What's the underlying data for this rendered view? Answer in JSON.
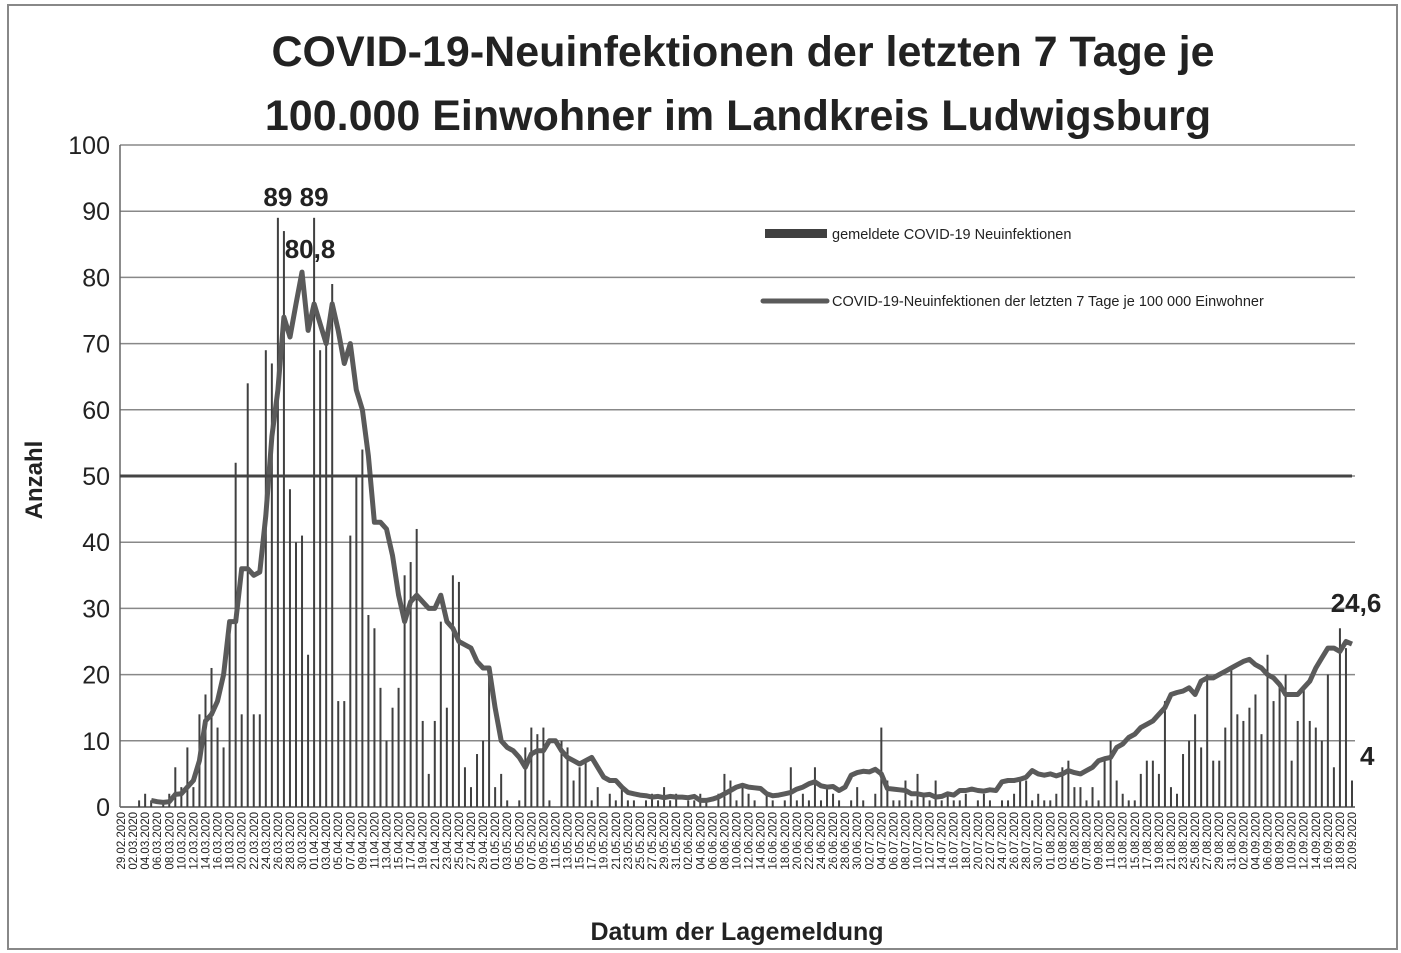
{
  "chart_data": {
    "type": "bar_line",
    "title": "COVID-19-Neuinfektionen der letzten 7 Tage je",
    "title_line2": "100.000 Einwohner im Landkreis Ludwigsburg",
    "y_label": "Anzahl",
    "x_label": "Datum der Lagemeldung",
    "ylim": [
      0,
      100
    ],
    "yticks": [
      0,
      10,
      20,
      30,
      40,
      50,
      60,
      70,
      80,
      90,
      100
    ],
    "grid": true,
    "reference_line": 50,
    "categories": [
      "29.02.2020",
      null,
      "02.03.2020",
      null,
      "04.03.2020",
      null,
      "06.03.2020",
      null,
      "08.03.2020",
      null,
      "10.03.2020",
      null,
      "12.03.2020",
      null,
      "14.03.2020",
      null,
      "16.03.2020",
      null,
      "18.03.2020",
      null,
      "20.03.2020",
      null,
      "22.03.2020",
      null,
      "24.03.2020",
      null,
      "26.03.2020",
      null,
      "28.03.2020",
      null,
      "30.03.2020",
      null,
      "01.04.2020",
      null,
      "03.04.2020",
      null,
      "05.04.2020",
      null,
      "07.04.2020",
      null,
      "09.04.2020",
      null,
      "11.04.2020",
      null,
      "13.04.2020",
      null,
      "15.04.2020",
      null,
      "17.04.2020",
      null,
      "19.04.2020",
      null,
      "21.04.2020",
      null,
      "23.04.2020",
      null,
      "25.04.2020",
      null,
      "27.04.2020",
      null,
      "29.04.2020",
      null,
      "01.05.2020",
      null,
      "03.05.2020",
      null,
      "05.05.2020",
      null,
      "07.05.2020",
      null,
      "09.05.2020",
      null,
      "11.05.2020",
      null,
      "13.05.2020",
      null,
      "15.05.2020",
      null,
      "17.05.2020",
      null,
      "19.05.2020",
      null,
      "21.05.2020",
      null,
      "23.05.2020",
      null,
      "25.05.2020",
      null,
      "27.05.2020",
      null,
      "29.05.2020",
      null,
      "31.05.2020",
      null,
      "02.06.2020",
      null,
      "04.06.2020",
      null,
      "06.06.2020",
      null,
      "08.06.2020",
      null,
      "10.06.2020",
      null,
      "12.06.2020",
      null,
      "14.06.2020",
      null,
      "16.06.2020",
      null,
      "18.06.2020",
      null,
      "20.06.2020",
      null,
      "22.06.2020",
      null,
      "24.06.2020",
      null,
      "26.06.2020",
      null,
      "28.06.2020",
      null,
      "30.06.2020",
      null,
      "02.07.2020",
      null,
      "04.07.2020",
      null,
      "06.07.2020",
      null,
      "08.07.2020",
      null,
      "10.07.2020",
      null,
      "12.07.2020",
      null,
      "14.07.2020",
      null,
      "16.07.2020",
      null,
      "18.07.2020",
      null,
      "20.07.2020",
      null,
      "22.07.2020",
      null,
      "24.07.2020",
      null,
      "26.07.2020",
      null,
      "28.07.2020",
      null,
      "30.07.2020",
      null,
      "01.08.2020",
      null,
      "03.08.2020",
      null,
      "05.08.2020",
      null,
      "07.08.2020",
      null,
      "09.08.2020",
      null,
      "11.08.2020",
      null,
      "13.08.2020",
      null,
      "15.08.2020",
      null,
      "17.08.2020",
      null,
      "19.08.2020",
      null,
      "21.08.2020",
      null,
      "23.08.2020",
      null,
      "25.08.2020",
      null,
      "27.08.2020",
      null,
      "29.08.2020",
      null,
      "31.08.2020",
      null,
      "02.09.2020",
      null,
      "04.09.2020",
      null,
      "06.09.2020",
      null,
      "08.09.2020",
      null,
      "10.09.2020",
      null,
      "12.09.2020",
      null,
      "14.09.2020",
      null,
      "16.09.2020",
      null,
      "18.09.2020",
      null,
      "20.09.2020"
    ],
    "series": [
      {
        "name": "gemeldete COVID-19 Neuinfektionen",
        "kind": "bar",
        "color": "#404040",
        "values": [
          0,
          0,
          0,
          1,
          2,
          1,
          0,
          1,
          2,
          6,
          3,
          9,
          3,
          14,
          17,
          21,
          12,
          9,
          26,
          52,
          14,
          64,
          14,
          14,
          69,
          67,
          89,
          87,
          48,
          40,
          41,
          23,
          89,
          69,
          70,
          79,
          16,
          16,
          41,
          50,
          54,
          29,
          27,
          18,
          10,
          15,
          18,
          35,
          37,
          42,
          13,
          5,
          13,
          28,
          15,
          35,
          34,
          6,
          3,
          8,
          10,
          21,
          3,
          5,
          1,
          0,
          1,
          9,
          12,
          11,
          12,
          1,
          0,
          10,
          9,
          4,
          6,
          7,
          1,
          3,
          0,
          2,
          1,
          3,
          1,
          1,
          0,
          1,
          2,
          1,
          3,
          1,
          2,
          0,
          1,
          1,
          2,
          1,
          0,
          2,
          5,
          4,
          1,
          3,
          2,
          1,
          0,
          2,
          1,
          0,
          1,
          6,
          1,
          2,
          1,
          6,
          1,
          3,
          2,
          1,
          0,
          1,
          3,
          1,
          0,
          2,
          12,
          4,
          1,
          1,
          4,
          1,
          5,
          2,
          1,
          4,
          1,
          2,
          1,
          1,
          2,
          0,
          1,
          2,
          1,
          0,
          1,
          1,
          2,
          4,
          4,
          1,
          2,
          1,
          1,
          2,
          6,
          7,
          3,
          3,
          1,
          3,
          1,
          7,
          10,
          4,
          2,
          1,
          1,
          5,
          7,
          7,
          5,
          16,
          3,
          2,
          8,
          10,
          14,
          9,
          20,
          7,
          7,
          12,
          21,
          14,
          13,
          15,
          17,
          11,
          23,
          16,
          18,
          20,
          7,
          13,
          18,
          13,
          12,
          10,
          20,
          6,
          27,
          24,
          4
        ]
      },
      {
        "name": "COVID-19-Neuinfektionen der letzten 7 Tage je 100 000 Einwohner",
        "kind": "line",
        "color": "#5a5a5a",
        "values": [
          null,
          null,
          null,
          null,
          null,
          1,
          0.8,
          0.7,
          0.8,
          1.9,
          2,
          3,
          4,
          7,
          13,
          14,
          16,
          20,
          28,
          28,
          36,
          36,
          35,
          35.5,
          44,
          56,
          63,
          74,
          71,
          76,
          80.8,
          72,
          76,
          73,
          70,
          76,
          72,
          67,
          70,
          63,
          60,
          53,
          43,
          43,
          42,
          38,
          32,
          28,
          31,
          32,
          31,
          30,
          30,
          32,
          28,
          27,
          25,
          24.5,
          24,
          22,
          21,
          21,
          15,
          10,
          9,
          8.5,
          7.5,
          6,
          8,
          8.5,
          8.5,
          10,
          10,
          8.5,
          7.5,
          7,
          6.5,
          7,
          7.5,
          6,
          4.5,
          4,
          4,
          3,
          2.2,
          2,
          1.8,
          1.7,
          1.5,
          1.6,
          1.4,
          1.6,
          1.5,
          1.5,
          1.4,
          1.6,
          1,
          1,
          1.2,
          1.5,
          2,
          2.5,
          3,
          3.3,
          3,
          2.9,
          2.8,
          2,
          1.7,
          1.8,
          2,
          2.2,
          2.7,
          3,
          3.5,
          3.8,
          3.2,
          3,
          3.1,
          2.5,
          3,
          4.8,
          5.2,
          5.4,
          5.3,
          5.7,
          5,
          2.8,
          2.7,
          2.6,
          2.5,
          2,
          2,
          1.8,
          1.9,
          1.5,
          1.6,
          2,
          1.8,
          2.5,
          2.5,
          2.7,
          2.5,
          2.4,
          2.6,
          2.5,
          3.8,
          4,
          4,
          4.2,
          4.5,
          5.5,
          5,
          4.8,
          5,
          4.7,
          5,
          5.5,
          5.2,
          5,
          5.5,
          6,
          7,
          7.3,
          7.5,
          9,
          9.5,
          10.5,
          11,
          12,
          12.5,
          13,
          14,
          15,
          17,
          17.3,
          17.5,
          18,
          17,
          19,
          19.5,
          19.5,
          20,
          20.5,
          21,
          21.5,
          22,
          22.3,
          21.5,
          21,
          20,
          19.5,
          18.5,
          17,
          17,
          17,
          18,
          19,
          21,
          22.5,
          24,
          24,
          23.5,
          25,
          24.6
        ]
      }
    ],
    "annotations": [
      {
        "series": 0,
        "index": 26,
        "label": "89"
      },
      {
        "series": 0,
        "index": 32,
        "label": "89"
      },
      {
        "series": 1,
        "index": 30,
        "label": "80,8"
      },
      {
        "series": 1,
        "index": 204,
        "label": "24,6"
      },
      {
        "series": 0,
        "index": 204,
        "label": "4"
      }
    ]
  }
}
